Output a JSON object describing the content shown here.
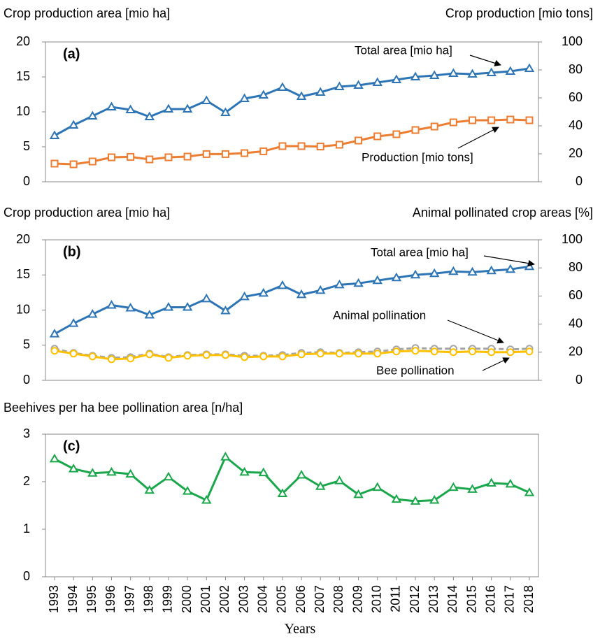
{
  "chart_data": [
    {
      "type": "line",
      "label": "(a)",
      "y_label": "Crop production area [mio ha]",
      "y2_label": "Crop production [mio tons]",
      "ylim": [
        0,
        20
      ],
      "yticks": [
        0,
        5,
        10,
        15,
        20
      ],
      "y2lim": [
        0,
        100
      ],
      "y2ticks": [
        0,
        20,
        40,
        60,
        80,
        100
      ],
      "annotations": [
        "Total area [mio ha]",
        "Production [mio tons]"
      ],
      "series": [
        {
          "name": "Total area [mio ha]",
          "color": "#2e75b6",
          "marker": "triangle",
          "values": [
            6.6,
            8.1,
            9.4,
            10.7,
            10.3,
            9.3,
            10.4,
            10.4,
            11.6,
            9.9,
            11.9,
            12.4,
            13.5,
            12.2,
            12.8,
            13.6,
            13.8,
            14.2,
            14.6,
            15.0,
            15.2,
            15.5,
            15.4,
            15.6,
            15.8,
            16.2
          ]
        },
        {
          "name": "Production [mio tons]",
          "color": "#ed7d31",
          "marker": "square",
          "axis": "y2",
          "values": [
            13,
            12.5,
            14.5,
            17.5,
            17.8,
            16,
            17.5,
            18,
            19.8,
            19.8,
            20.5,
            21.8,
            25.5,
            25.5,
            25.2,
            26.5,
            29.5,
            32.5,
            34,
            37,
            39.5,
            42.5,
            44,
            44,
            44.5,
            44
          ]
        }
      ]
    },
    {
      "type": "line",
      "label": "(b)",
      "y_label": "Crop production area [mio ha]",
      "y2_label": "Animal pollinated crop areas [%]",
      "ylim": [
        0,
        20
      ],
      "yticks": [
        0,
        5,
        10,
        15,
        20
      ],
      "y2lim": [
        0,
        100
      ],
      "y2ticks": [
        0,
        20,
        40,
        60,
        80,
        100
      ],
      "annotations": [
        "Total area [mio ha]",
        "Animal pollination",
        "Bee pollination"
      ],
      "series": [
        {
          "name": "Total area [mio ha]",
          "color": "#2e75b6",
          "marker": "triangle",
          "values": [
            6.6,
            8.1,
            9.4,
            10.7,
            10.3,
            9.3,
            10.4,
            10.4,
            11.6,
            9.9,
            11.9,
            12.4,
            13.5,
            12.2,
            12.8,
            13.6,
            13.8,
            14.2,
            14.6,
            15.0,
            15.2,
            15.5,
            15.4,
            15.6,
            15.8,
            16.2
          ]
        },
        {
          "name": "Animal pollination",
          "color": "#a5a5a5",
          "marker": "circle",
          "dashed": true,
          "axis": "y2",
          "values": [
            22.5,
            19.5,
            17.5,
            16,
            16.5,
            19,
            16.5,
            18,
            18.5,
            18.5,
            17.5,
            17.5,
            18,
            19.5,
            20,
            19.5,
            20,
            20.5,
            22,
            23,
            22.5,
            22.5,
            22.5,
            22.5,
            22,
            22.5
          ]
        },
        {
          "name": "Bee pollination",
          "color": "#ffc000",
          "marker": "circle",
          "axis": "y2",
          "values": [
            21,
            19,
            17,
            15,
            15.5,
            18.5,
            16,
            17.5,
            18,
            18,
            16.5,
            17,
            17,
            18.5,
            19,
            19,
            19,
            19,
            20.5,
            21,
            20.5,
            20,
            20.5,
            20,
            20,
            20.5
          ]
        }
      ]
    },
    {
      "type": "line",
      "label": "(c)",
      "y_label": "Beehives per ha bee pollination area [n/ha]",
      "x_label": "Years",
      "categories": [
        "1993",
        "1994",
        "1995",
        "1996",
        "1997",
        "1998",
        "1999",
        "2000",
        "2001",
        "2002",
        "2003",
        "2004",
        "2005",
        "2006",
        "2007",
        "2008",
        "2009",
        "2010",
        "2011",
        "2012",
        "2013",
        "2014",
        "2015",
        "2016",
        "2017",
        "2018"
      ],
      "ylim": [
        0,
        3
      ],
      "yticks": [
        0,
        1,
        2,
        3
      ],
      "series": [
        {
          "name": "Beehives per ha",
          "color": "#1aa64a",
          "marker": "triangle",
          "values": [
            2.48,
            2.27,
            2.18,
            2.2,
            2.16,
            1.82,
            2.1,
            1.8,
            1.61,
            2.52,
            2.2,
            2.19,
            1.75,
            2.14,
            1.9,
            2.02,
            1.73,
            1.88,
            1.63,
            1.59,
            1.61,
            1.88,
            1.84,
            1.97,
            1.95,
            1.77
          ]
        }
      ]
    }
  ]
}
